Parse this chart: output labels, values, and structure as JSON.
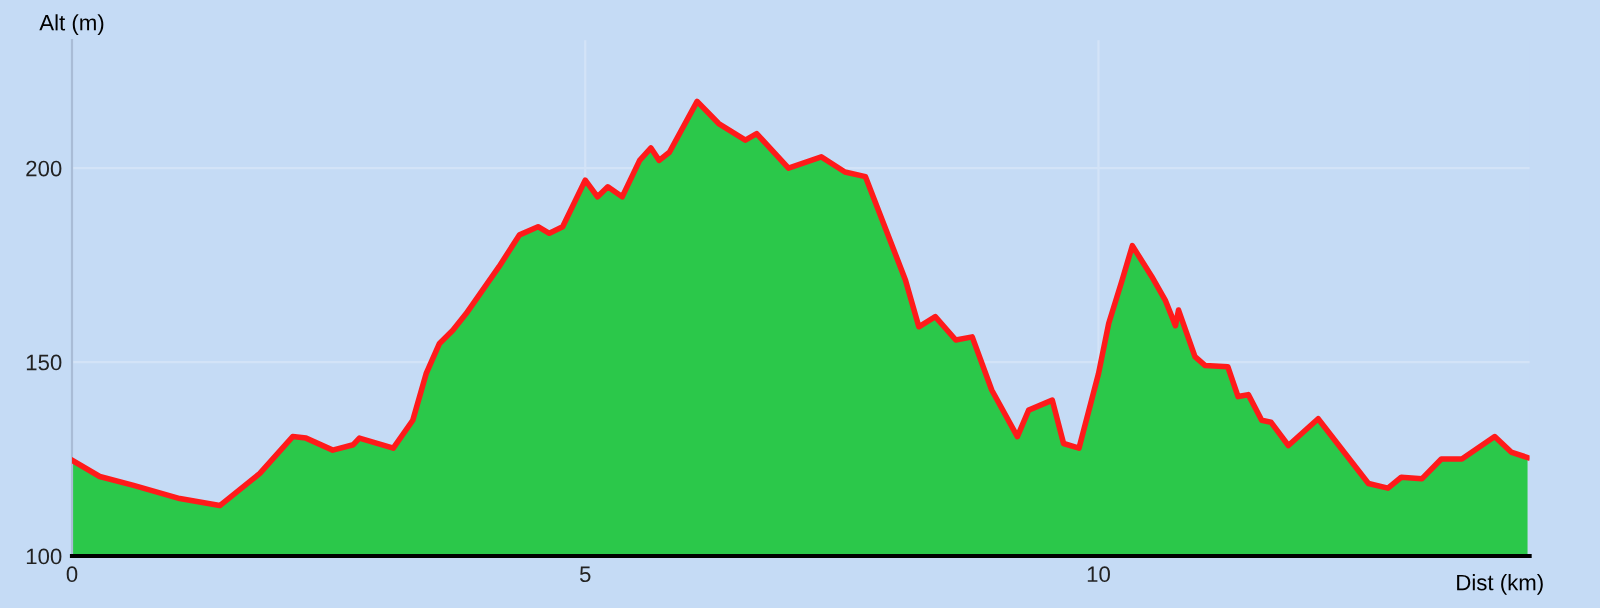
{
  "chart_data": {
    "type": "area",
    "xlabel": "Dist (km)",
    "ylabel": "Alt (m)",
    "xlim": [
      0,
      14.2
    ],
    "ylim": [
      100,
      233
    ],
    "xticks": [
      0,
      5,
      10
    ],
    "yticks": [
      100,
      150,
      200
    ],
    "grid": true,
    "series": [
      {
        "color": "#2bc84a",
        "x": [
          0,
          0.27,
          0.6,
          1.05,
          1.44,
          1.83,
          2.15,
          2.28,
          2.54,
          2.74,
          2.8,
          3.13,
          3.32,
          3.45,
          3.58,
          3.71,
          3.84,
          4.16,
          4.36,
          4.54,
          4.65,
          4.78,
          5.0,
          5.12,
          5.22,
          5.36,
          5.53,
          5.64,
          5.72,
          5.82,
          6.09,
          6.3,
          6.56,
          6.67,
          6.98,
          7.3,
          7.53,
          7.73,
          8.12,
          8.25,
          8.41,
          8.61,
          8.77,
          8.96,
          9.21,
          9.32,
          9.55,
          9.66,
          9.81,
          10.0,
          10.1,
          10.23,
          10.33,
          10.52,
          10.65,
          10.75,
          10.78,
          10.94,
          11.04,
          11.26,
          11.36,
          11.46,
          11.59,
          11.68,
          11.85,
          12.14,
          12.63,
          12.82,
          12.95,
          13.15,
          13.34,
          13.54,
          13.86,
          14.02,
          14.18
        ],
        "values": [
          124.7,
          120.5,
          118.2,
          114.8,
          113.0,
          121.3,
          130.8,
          130.4,
          127.3,
          128.7,
          130.4,
          127.8,
          135,
          147,
          154.8,
          158.2,
          162.5,
          174.6,
          182.8,
          184.9,
          183.2,
          184.9,
          196.9,
          192.6,
          195.2,
          192.6,
          202,
          205.2,
          202,
          204.1,
          217.2,
          211.5,
          207.2,
          208.9,
          200,
          202.9,
          199,
          197.8,
          171.1,
          159.1,
          161.7,
          155.7,
          156.5,
          142.8,
          130.8,
          137.6,
          140.2,
          129,
          127.8,
          147,
          160,
          171.1,
          180,
          172,
          166,
          159.4,
          163.4,
          151.4,
          149.1,
          148.8,
          141.1,
          141.6,
          135,
          134.5,
          128.5,
          135.4,
          118.7,
          117.5,
          120.3,
          119.9,
          125,
          125,
          130.8,
          126.8,
          125.4
        ]
      },
      {
        "type": "line",
        "color": "#ff1a1a",
        "x": [
          0,
          0.27,
          0.6,
          1.05,
          1.44,
          1.83,
          2.15,
          2.28,
          2.54,
          2.74,
          2.8,
          3.13,
          3.32,
          3.45,
          3.58,
          3.71,
          3.84,
          4.16,
          4.36,
          4.54,
          4.65,
          4.78,
          5.0,
          5.12,
          5.22,
          5.36,
          5.53,
          5.64,
          5.72,
          5.82,
          6.09,
          6.3,
          6.56,
          6.67,
          6.98,
          7.3,
          7.53,
          7.73,
          8.12,
          8.25,
          8.41,
          8.61,
          8.77,
          8.96,
          9.21,
          9.32,
          9.55,
          9.66,
          9.81,
          10.0,
          10.1,
          10.23,
          10.33,
          10.52,
          10.65,
          10.75,
          10.78,
          10.94,
          11.04,
          11.26,
          11.36,
          11.46,
          11.59,
          11.68,
          11.85,
          12.14,
          12.63,
          12.82,
          12.95,
          13.15,
          13.34,
          13.54,
          13.86,
          14.02,
          14.18
        ],
        "values": [
          124.7,
          120.5,
          118.2,
          114.8,
          113.0,
          121.3,
          130.8,
          130.4,
          127.3,
          128.7,
          130.4,
          127.8,
          135,
          147,
          154.8,
          158.2,
          162.5,
          174.6,
          182.8,
          184.9,
          183.2,
          184.9,
          196.9,
          192.6,
          195.2,
          192.6,
          202,
          205.2,
          202,
          204.1,
          217.2,
          211.5,
          207.2,
          208.9,
          200,
          202.9,
          199,
          197.8,
          171.1,
          159.1,
          161.7,
          155.7,
          156.5,
          142.8,
          130.8,
          137.6,
          140.2,
          129,
          127.8,
          147,
          160,
          171.1,
          180,
          172,
          166,
          159.4,
          163.4,
          151.4,
          149.1,
          148.8,
          141.1,
          141.6,
          135,
          134.5,
          128.5,
          135.4,
          118.7,
          117.5,
          120.3,
          119.9,
          125,
          125,
          130.8,
          126.8,
          125.4
        ]
      }
    ]
  }
}
